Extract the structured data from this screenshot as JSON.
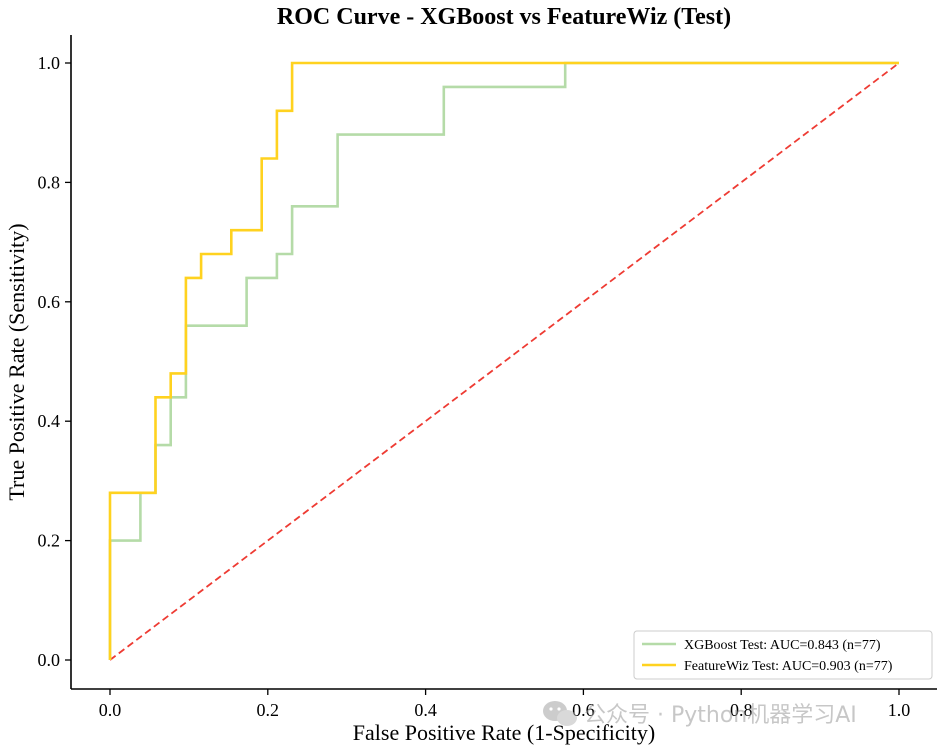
{
  "chart_data": {
    "type": "line",
    "title": "ROC Curve - XGBoost vs FeatureWiz (Test)",
    "xlabel": "False Positive Rate (1-Specificity)",
    "ylabel": "True Positive Rate (Sensitivity)",
    "xlim": [
      -0.1,
      1.1
    ],
    "ylim": [
      -0.05,
      1.05
    ],
    "xticks": [
      "0.0",
      "0.2",
      "0.4",
      "0.6",
      "0.8",
      "1.0"
    ],
    "yticks": [
      "0.0",
      "0.2",
      "0.4",
      "0.6",
      "0.8",
      "1.0"
    ],
    "grid": false,
    "legend_position": "lower-right",
    "series": [
      {
        "name": "XGBoost Test: AUC=0.843 (n=77)",
        "color": "#b5dba8",
        "x": [
          0,
          0,
          0.0385,
          0.0385,
          0.0577,
          0.0577,
          0.0769,
          0.0769,
          0.0962,
          0.0962,
          0.1731,
          0.1731,
          0.2115,
          0.2115,
          0.2308,
          0.2308,
          0.2885,
          0.2885,
          0.4231,
          0.4231,
          0.5769,
          0.5769,
          1.0
        ],
        "y": [
          0,
          0.2,
          0.2,
          0.28,
          0.28,
          0.36,
          0.36,
          0.44,
          0.44,
          0.56,
          0.56,
          0.64,
          0.64,
          0.68,
          0.68,
          0.76,
          0.76,
          0.88,
          0.88,
          0.96,
          0.96,
          1.0,
          1.0
        ]
      },
      {
        "name": "FeatureWiz Test: AUC=0.903 (n=77)",
        "color": "#ffd21f",
        "x": [
          0,
          0,
          0.0577,
          0.0577,
          0.0769,
          0.0769,
          0.0962,
          0.0962,
          0.1154,
          0.1154,
          0.1538,
          0.1538,
          0.1923,
          0.1923,
          0.2115,
          0.2115,
          0.2308,
          0.2308,
          1.0
        ],
        "y": [
          0,
          0.28,
          0.28,
          0.44,
          0.44,
          0.48,
          0.48,
          0.64,
          0.64,
          0.68,
          0.68,
          0.72,
          0.72,
          0.84,
          0.84,
          0.92,
          0.92,
          1.0,
          1.0
        ]
      },
      {
        "name": "",
        "color": "#ee3b33",
        "dashed": true,
        "x": [
          0,
          1
        ],
        "y": [
          0,
          1
        ]
      }
    ]
  },
  "watermark": {
    "text": "公众号 · Python机器学习AI",
    "icon": "wechat-icon"
  }
}
